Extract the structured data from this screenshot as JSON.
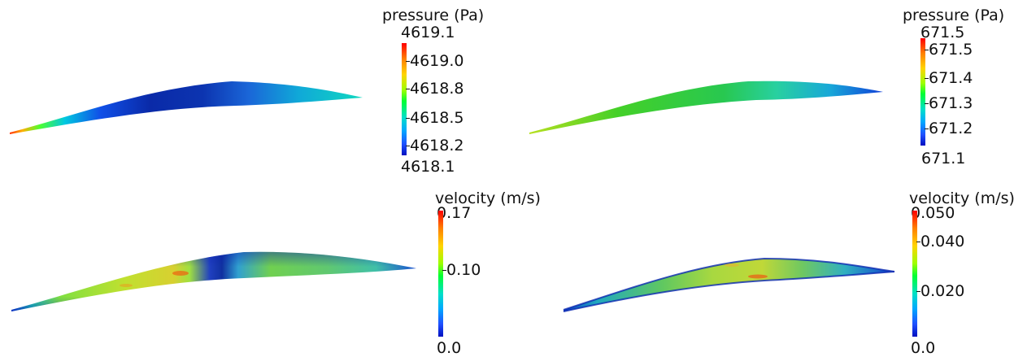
{
  "panels": [
    {
      "id": "pressure-left",
      "colorbar": {
        "title": "pressure (Pa)",
        "max_label": "4619.1",
        "min_label": "4618.1",
        "ticks": [
          "4619.0",
          "4618.8",
          "4618.5",
          "4618.2"
        ]
      }
    },
    {
      "id": "pressure-right",
      "colorbar": {
        "title": "pressure (Pa)",
        "max_label": "671.5",
        "min_label": "671.1",
        "ticks": [
          "671.5",
          "671.4",
          "671.3",
          "671.2"
        ]
      }
    },
    {
      "id": "velocity-left",
      "colorbar": {
        "title": "velocity (m/s)",
        "max_label": "0.17",
        "min_label": "0.0",
        "ticks": [
          "0.10"
        ]
      }
    },
    {
      "id": "velocity-right",
      "colorbar": {
        "title": "velocity (m/s)",
        "max_label": "0.050",
        "min_label": "0.0",
        "ticks": [
          "0.040",
          "0.020"
        ]
      }
    }
  ]
}
